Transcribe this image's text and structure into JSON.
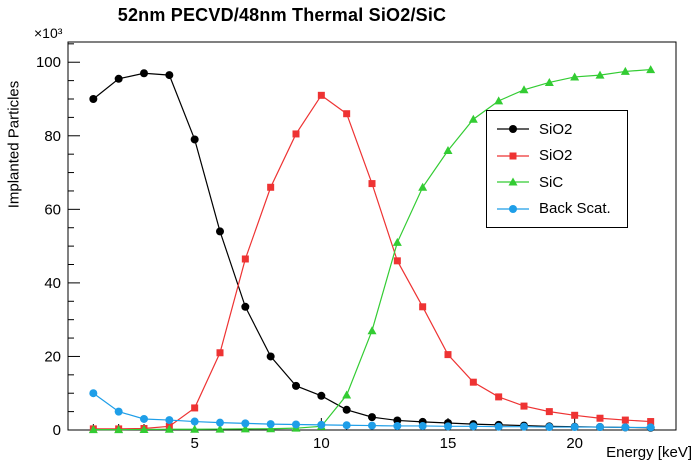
{
  "chart_data": {
    "type": "line",
    "title": "52nm PECVD/48nm Thermal SiO2/SiC",
    "xlabel": "Energy [keV]",
    "ylabel": "Implanted Particles",
    "y_multiplier": "×10³",
    "xlim": [
      0,
      24
    ],
    "ylim": [
      0,
      105.5
    ],
    "xticks": [
      5,
      10,
      15,
      20
    ],
    "xticks_minor_step": 1,
    "yticks": [
      0,
      20,
      40,
      60,
      80,
      100
    ],
    "yticks_minor_step": 5,
    "grid": false,
    "legend_position": "right-center",
    "x": [
      1,
      2,
      3,
      4,
      5,
      6,
      7,
      8,
      9,
      10,
      11,
      12,
      13,
      14,
      15,
      16,
      17,
      18,
      19,
      20,
      21,
      22,
      23
    ],
    "series": [
      {
        "name": "SiO2",
        "color": "#000000",
        "marker": "circle",
        "values": [
          90,
          95.5,
          97,
          96.5,
          79,
          54,
          33.5,
          20,
          12,
          9.3,
          5.5,
          3.5,
          2.6,
          2.2,
          1.9,
          1.6,
          1.4,
          1.2,
          1.0,
          0.9,
          0.8,
          0.7,
          0.6
        ]
      },
      {
        "name": "SiO2",
        "color": "#ee3333",
        "marker": "square",
        "values": [
          0.3,
          0.3,
          0.4,
          1,
          6,
          21,
          46.5,
          66,
          80.5,
          91,
          86,
          67,
          46,
          33.5,
          20.5,
          13,
          9,
          6.5,
          5,
          4,
          3.2,
          2.7,
          2.3
        ]
      },
      {
        "name": "SiC",
        "color": "#33cc33",
        "marker": "triangle-up",
        "values": [
          0.1,
          0.1,
          0.15,
          0.2,
          0.2,
          0.25,
          0.3,
          0.35,
          0.5,
          1,
          9.5,
          27,
          51,
          66,
          76,
          84.5,
          89.5,
          92.5,
          94.5,
          96,
          96.5,
          97.5,
          98
        ]
      },
      {
        "name": "Back Scat.",
        "color": "#1e9ee8",
        "marker": "circle",
        "values": [
          10,
          5,
          3,
          2.7,
          2.3,
          2,
          1.8,
          1.6,
          1.5,
          1.4,
          1.3,
          1.2,
          1.1,
          1.1,
          1,
          1,
          0.9,
          0.9,
          0.8,
          0.8,
          0.8,
          0.7,
          0.7
        ]
      }
    ]
  }
}
